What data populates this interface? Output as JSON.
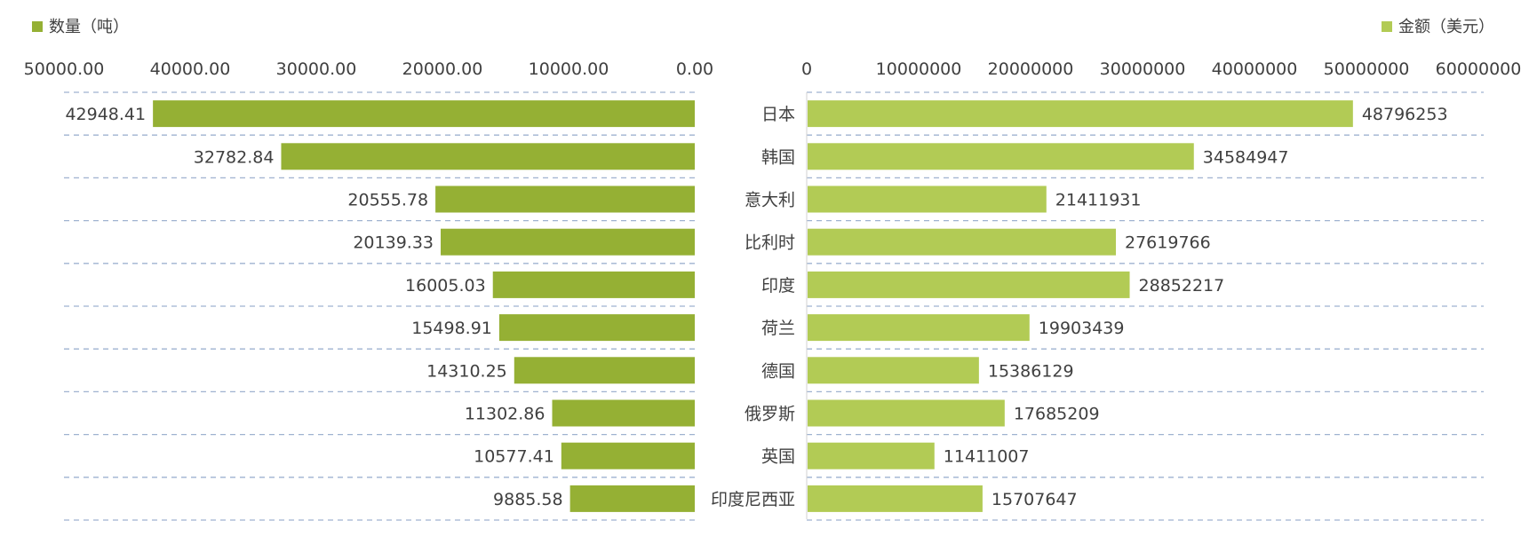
{
  "chart_data": [
    {
      "type": "bar",
      "orientation": "horizontal",
      "direction": "reversed",
      "legend": "数量（吨）",
      "legend_placement": "top-left",
      "color": "#95B034",
      "xlim": [
        0,
        50000
      ],
      "ticks": [
        "50000.00",
        "40000.00",
        "30000.00",
        "20000.00",
        "10000.00",
        "0.00"
      ],
      "tick_values": [
        50000,
        40000,
        30000,
        20000,
        10000,
        0
      ],
      "categories": [
        "日本",
        "韩国",
        "意大利",
        "比利时",
        "印度",
        "荷兰",
        "德国",
        "俄罗斯",
        "英国",
        "印度尼西亚"
      ],
      "values": [
        42948.41,
        32782.84,
        20555.78,
        20139.33,
        16005.03,
        15498.91,
        14310.25,
        11302.86,
        10577.41,
        9885.58
      ],
      "labels": [
        "42948.41",
        "32782.84",
        "20555.78",
        "20139.33",
        "16005.03",
        "15498.91",
        "14310.25",
        "11302.86",
        "10577.41",
        "9885.58"
      ],
      "grid": "dashed-horizontal"
    },
    {
      "type": "bar",
      "orientation": "horizontal",
      "legend": "金额（美元）",
      "legend_placement": "top-right",
      "color": "#B2CB55",
      "xlim": [
        0,
        60000000
      ],
      "ticks": [
        "0",
        "10000000",
        "20000000",
        "30000000",
        "40000000",
        "50000000",
        "60000000"
      ],
      "tick_values": [
        0,
        10000000,
        20000000,
        30000000,
        40000000,
        50000000,
        60000000
      ],
      "categories": [
        "日本",
        "韩国",
        "意大利",
        "比利时",
        "印度",
        "荷兰",
        "德国",
        "俄罗斯",
        "英国",
        "印度尼西亚"
      ],
      "values": [
        48796253,
        34584947,
        21411931,
        27619766,
        28852217,
        19903439,
        15386129,
        17685209,
        11411007,
        15707647
      ],
      "labels": [
        "48796253",
        "34584947",
        "21411931",
        "27619766",
        "28852217",
        "19903439",
        "15386129",
        "17685209",
        "11411007",
        "15707647"
      ],
      "grid": "dashed-horizontal"
    }
  ]
}
